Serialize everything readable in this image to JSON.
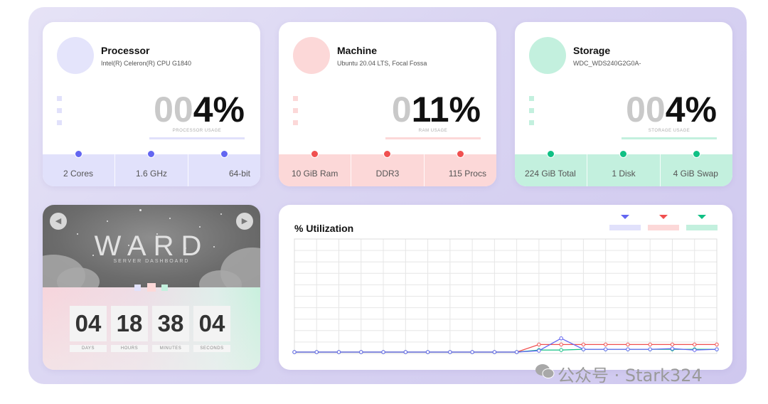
{
  "colors": {
    "processor": "#6366f1",
    "processor_light": "#e1e1fb",
    "machine": "#f05050",
    "machine_light": "#fcd8d8",
    "storage": "#10c084",
    "storage_light": "#c3f0de"
  },
  "cards": [
    {
      "title": "Processor",
      "subtitle": "Intel(R) Celeron(R) CPU G1840",
      "value_dim": "00",
      "value_strong": "4%",
      "usage_label": "PROCESSOR USAGE",
      "footer": [
        "2 Cores",
        "1.6 GHz",
        "64-bit"
      ]
    },
    {
      "title": "Machine",
      "subtitle": "Ubuntu 20.04 LTS, Focal Fossa",
      "value_dim": "0",
      "value_strong": "11%",
      "usage_label": "RAM USAGE",
      "footer": [
        "10 GiB Ram",
        "DDR3",
        "115 Procs"
      ]
    },
    {
      "title": "Storage",
      "subtitle": "WDC_WDS240G2G0A-",
      "value_dim": "00",
      "value_strong": "4%",
      "usage_label": "STORAGE USAGE",
      "footer": [
        "224 GiB Total",
        "1 Disk",
        "4 GiB Swap"
      ]
    }
  ],
  "ward": {
    "title": "WARD",
    "subtitle": "SERVER DASHBOARD",
    "prev_icon": "◀",
    "next_icon": "▶",
    "countdown": [
      {
        "value": "04",
        "label": "DAYS"
      },
      {
        "value": "18",
        "label": "HOURS"
      },
      {
        "value": "38",
        "label": "MINUTES"
      },
      {
        "value": "04",
        "label": "SECONDS"
      }
    ]
  },
  "chart_data": {
    "type": "line",
    "title": "% Utilization",
    "grid": true,
    "legend": "top-right",
    "ylim": [
      0,
      100
    ],
    "x": [
      1,
      2,
      3,
      4,
      5,
      6,
      7,
      8,
      9,
      10,
      11,
      12,
      13,
      14,
      15,
      16,
      17,
      18,
      19,
      20
    ],
    "series": [
      {
        "values": [
          0,
          0,
          0,
          0,
          0,
          0,
          0,
          0,
          0,
          0,
          0,
          2,
          20,
          4,
          4,
          4,
          4,
          5,
          3,
          4
        ]
      },
      {
        "values": [
          0,
          0,
          0,
          0,
          0,
          0,
          0,
          0,
          0,
          0,
          0,
          11,
          11,
          11,
          11,
          11,
          11,
          11,
          11,
          11
        ]
      },
      {
        "values": [
          0,
          0,
          0,
          0,
          0,
          0,
          0,
          0,
          0,
          0,
          0,
          3,
          3,
          4,
          4,
          4,
          4,
          4,
          4,
          4
        ]
      }
    ]
  },
  "watermark": "公众号 · Stark324"
}
